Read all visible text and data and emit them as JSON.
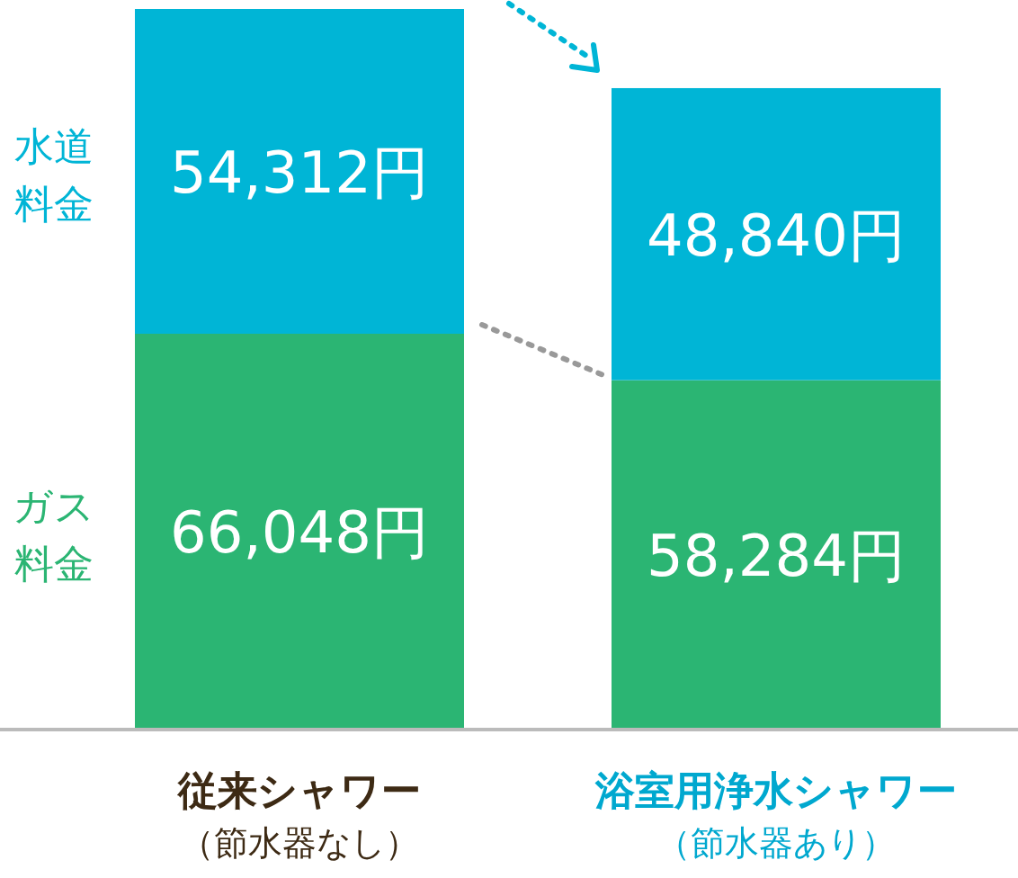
{
  "chart_data": {
    "type": "bar",
    "stacked": true,
    "categories": [
      "従来シャワー（節水器なし）",
      "浴室用浄水シャワー（節水器あり）"
    ],
    "series": [
      {
        "name": "ガス料金",
        "color": "#2bb573",
        "values": [
          66048,
          58284
        ],
        "value_labels": [
          "66,048円",
          "58,284円"
        ]
      },
      {
        "name": "水道料金",
        "color": "#00b5d6",
        "values": [
          54312,
          48840
        ],
        "value_labels": [
          "54,312円",
          "48,840円"
        ]
      }
    ]
  }
}
